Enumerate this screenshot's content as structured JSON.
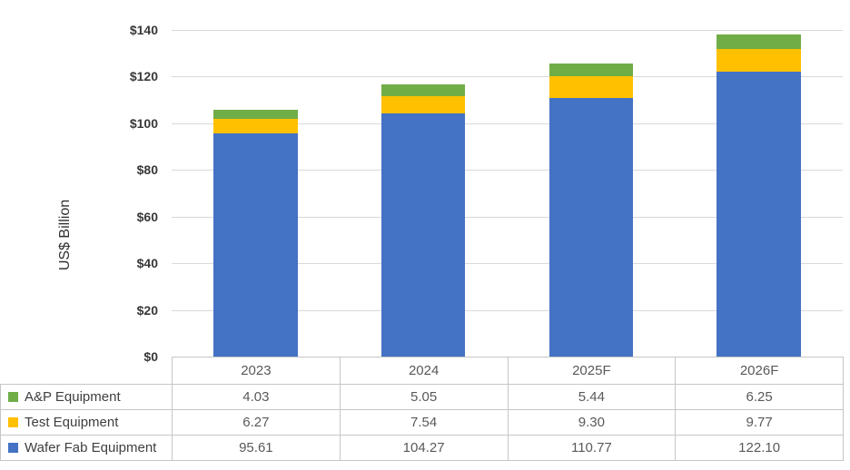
{
  "chart_data": {
    "type": "bar",
    "stacked": true,
    "title": "",
    "xlabel": "",
    "ylabel": "US$ Billion",
    "ylim": [
      0,
      140
    ],
    "ytick_step": 20,
    "grid": true,
    "legend_position": "data-table-left",
    "categories": [
      "2023",
      "2024",
      "2025F",
      "2026F"
    ],
    "series": [
      {
        "name": "A&P Equipment",
        "color": "#70AD47",
        "values": [
          4.03,
          5.05,
          5.44,
          6.25
        ]
      },
      {
        "name": "Test Equipment",
        "color": "#FFC000",
        "values": [
          6.27,
          7.54,
          9.3,
          9.77
        ]
      },
      {
        "name": "Wafer Fab Equipment",
        "color": "#4472C4",
        "values": [
          95.61,
          104.27,
          110.77,
          122.1
        ]
      }
    ],
    "yticks": [
      {
        "value": 0,
        "label": "$0"
      },
      {
        "value": 20,
        "label": "$20"
      },
      {
        "value": 40,
        "label": "$40"
      },
      {
        "value": 60,
        "label": "$60"
      },
      {
        "value": 80,
        "label": "$80"
      },
      {
        "value": 100,
        "label": "$100"
      },
      {
        "value": 120,
        "label": "$120"
      },
      {
        "value": 140,
        "label": "$140"
      }
    ]
  },
  "colors": {
    "gridline": "#D9D9D9",
    "table_border": "#C6C6C6",
    "tick_label": "#383838",
    "table_text": "#595959",
    "legend_text": "#3F3F3F",
    "background": "#FFFFFF"
  }
}
